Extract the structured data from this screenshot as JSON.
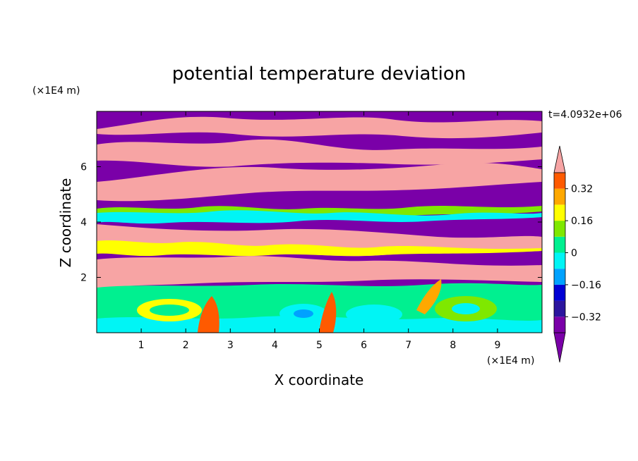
{
  "chart_data": {
    "type": "heatmap",
    "title": "potential temperature deviation",
    "xlabel": "X coordinate",
    "ylabel": "Z coordinate",
    "x_unit": "(×1E4 m)",
    "y_unit": "(×1E4 m)",
    "time_label": "t=4.0932e+06",
    "xlim": [
      0,
      10
    ],
    "ylim": [
      0,
      8
    ],
    "x_ticks": [
      1,
      2,
      3,
      4,
      5,
      6,
      7,
      8,
      9
    ],
    "y_ticks": [
      2,
      4,
      6
    ],
    "x_tick_labels": [
      "1",
      "2",
      "3",
      "4",
      "5",
      "6",
      "7",
      "8",
      "9"
    ],
    "y_tick_labels": [
      "2",
      "4",
      "6"
    ],
    "colorbar": {
      "levels": [
        -0.4,
        -0.32,
        -0.24,
        -0.16,
        -0.08,
        0,
        0.08,
        0.16,
        0.24,
        0.32,
        0.4
      ],
      "labeled_levels": [
        0.32,
        0.16,
        0,
        -0.16,
        -0.32
      ],
      "labels": [
        "0.32",
        "0.16",
        "0",
        "−0.16",
        "−0.32"
      ],
      "extend": "both",
      "colors": [
        "#7a00a8",
        "#2b159e",
        "#0000d4",
        "#00a2ff",
        "#00f5f5",
        "#00f090",
        "#7fe800",
        "#ffff00",
        "#ffa800",
        "#ff5a00",
        "#ff2020",
        "#f7a4a4"
      ]
    }
  }
}
